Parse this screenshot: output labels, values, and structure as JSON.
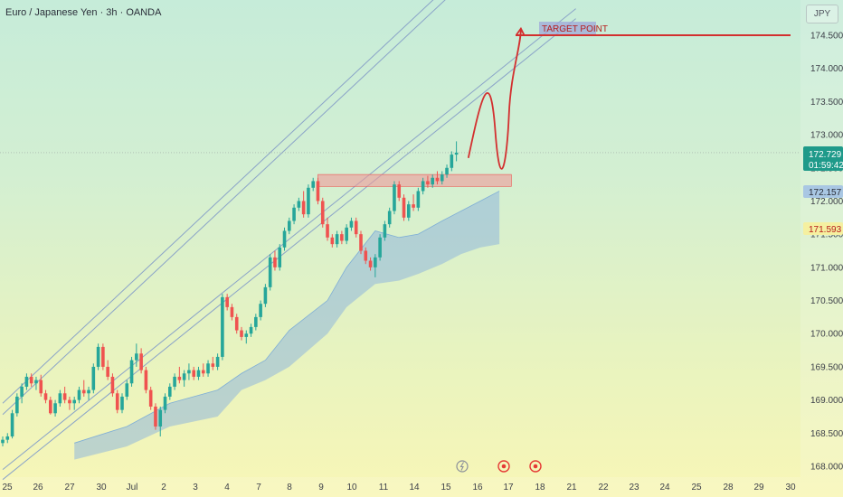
{
  "title": "Euro / Japanese Yen · 3h · OANDA",
  "currency": "JPY",
  "price_labels": {
    "current_price": "172.729",
    "countdown": "01:59:42",
    "cloud_a": "172.157",
    "cloud_b": "171.593"
  },
  "colors": {
    "up": "#26a69a",
    "down": "#ef5350",
    "channel": "#8aa3c8",
    "cloud": "#90b7dc",
    "target_line": "#d32f2f",
    "target_label_bg": "#9fa8da",
    "target_label_text": "#b71c1c",
    "resistance_zone": "#ef9a9a"
  },
  "annotations": {
    "target_label": "TARGET POINT"
  },
  "chart_data": {
    "type": "candlestick",
    "symbol": "Euro / Japanese Yen",
    "interval": "3h",
    "exchange": "OANDA",
    "ylim": [
      167.95,
      175.0
    ],
    "ytick_values": [
      168.0,
      168.5,
      169.0,
      169.5,
      170.0,
      170.5,
      171.0,
      171.5,
      172.0,
      172.5,
      173.0,
      173.5,
      174.0,
      174.5
    ],
    "ytick_labels": [
      "168.000",
      "168.500",
      "169.000",
      "169.500",
      "170.000",
      "170.500",
      "171.000",
      "171.500",
      "172.000",
      "172.500",
      "173.000",
      "173.500",
      "174.000",
      "174.500"
    ],
    "xticks": [
      "25",
      "26",
      "27",
      "30",
      "Jul",
      "2",
      "3",
      "4",
      "7",
      "8",
      "9",
      "10",
      "11",
      "14",
      "15",
      "16",
      "17",
      "18",
      "21",
      "22",
      "23",
      "24",
      "25",
      "28",
      "29",
      "30"
    ],
    "last_price": 172.729,
    "target_price": 174.5,
    "resistance_zone": [
      172.22,
      172.4
    ],
    "candles": [
      [
        168.35,
        168.45,
        168.3,
        168.4
      ],
      [
        168.4,
        168.5,
        168.35,
        168.45
      ],
      [
        168.45,
        168.85,
        168.42,
        168.8
      ],
      [
        168.8,
        169.1,
        168.75,
        169.05
      ],
      [
        169.05,
        169.25,
        168.95,
        169.2
      ],
      [
        169.2,
        169.4,
        169.15,
        169.35
      ],
      [
        169.35,
        169.4,
        169.2,
        169.25
      ],
      [
        169.25,
        169.35,
        169.15,
        169.3
      ],
      [
        169.3,
        169.38,
        169.05,
        169.1
      ],
      [
        169.1,
        169.15,
        168.95,
        169.0
      ],
      [
        169.0,
        169.05,
        168.78,
        168.8
      ],
      [
        168.8,
        169.0,
        168.75,
        168.95
      ],
      [
        168.95,
        169.15,
        168.9,
        169.1
      ],
      [
        169.1,
        169.2,
        168.95,
        169.0
      ],
      [
        169.0,
        169.05,
        168.85,
        168.95
      ],
      [
        168.95,
        169.05,
        168.85,
        169.0
      ],
      [
        169.0,
        169.2,
        168.95,
        169.15
      ],
      [
        169.15,
        169.3,
        169.05,
        169.1
      ],
      [
        169.1,
        169.2,
        169.0,
        169.15
      ],
      [
        169.15,
        169.55,
        169.1,
        169.5
      ],
      [
        169.5,
        169.85,
        169.45,
        169.8
      ],
      [
        169.8,
        169.85,
        169.45,
        169.5
      ],
      [
        169.5,
        169.6,
        169.3,
        169.35
      ],
      [
        169.35,
        169.4,
        169.05,
        169.1
      ],
      [
        169.1,
        169.15,
        168.8,
        168.85
      ],
      [
        168.85,
        169.1,
        168.8,
        169.05
      ],
      [
        169.05,
        169.3,
        169.0,
        169.25
      ],
      [
        169.25,
        169.65,
        169.2,
        169.6
      ],
      [
        169.6,
        169.85,
        169.5,
        169.7
      ],
      [
        169.7,
        169.78,
        169.4,
        169.45
      ],
      [
        169.45,
        169.5,
        169.1,
        169.15
      ],
      [
        169.15,
        169.2,
        168.85,
        168.9
      ],
      [
        168.9,
        168.95,
        168.55,
        168.6
      ],
      [
        168.6,
        168.9,
        168.45,
        168.85
      ],
      [
        168.85,
        169.1,
        168.8,
        169.05
      ],
      [
        169.05,
        169.25,
        169.0,
        169.2
      ],
      [
        169.2,
        169.4,
        169.15,
        169.35
      ],
      [
        169.35,
        169.5,
        169.25,
        169.3
      ],
      [
        169.3,
        169.45,
        169.2,
        169.4
      ],
      [
        169.4,
        169.55,
        169.3,
        169.45
      ],
      [
        169.45,
        169.5,
        169.3,
        169.35
      ],
      [
        169.35,
        169.5,
        169.3,
        169.45
      ],
      [
        169.45,
        169.55,
        169.35,
        169.4
      ],
      [
        169.4,
        169.6,
        169.35,
        169.55
      ],
      [
        169.55,
        169.65,
        169.45,
        169.5
      ],
      [
        169.5,
        169.7,
        169.45,
        169.65
      ],
      [
        169.65,
        170.6,
        169.6,
        170.55
      ],
      [
        170.55,
        170.6,
        170.35,
        170.4
      ],
      [
        170.4,
        170.45,
        170.2,
        170.25
      ],
      [
        170.25,
        170.3,
        170.0,
        170.05
      ],
      [
        170.05,
        170.1,
        169.9,
        169.95
      ],
      [
        169.95,
        170.05,
        169.85,
        170.0
      ],
      [
        170.0,
        170.15,
        169.95,
        170.1
      ],
      [
        170.1,
        170.3,
        170.05,
        170.25
      ],
      [
        170.25,
        170.5,
        170.2,
        170.45
      ],
      [
        170.45,
        170.75,
        170.4,
        170.7
      ],
      [
        170.7,
        171.2,
        170.65,
        171.15
      ],
      [
        171.15,
        171.25,
        170.95,
        171.0
      ],
      [
        171.0,
        171.35,
        170.95,
        171.3
      ],
      [
        171.3,
        171.6,
        171.25,
        171.55
      ],
      [
        171.55,
        171.75,
        171.5,
        171.7
      ],
      [
        171.7,
        171.95,
        171.65,
        171.9
      ],
      [
        171.9,
        172.05,
        171.85,
        172.0
      ],
      [
        172.0,
        172.15,
        171.75,
        171.8
      ],
      [
        171.8,
        172.25,
        171.75,
        172.2
      ],
      [
        172.2,
        172.35,
        172.15,
        172.3
      ],
      [
        172.3,
        172.35,
        171.95,
        172.0
      ],
      [
        172.0,
        172.05,
        171.6,
        171.65
      ],
      [
        171.65,
        171.75,
        171.4,
        171.45
      ],
      [
        171.45,
        171.5,
        171.3,
        171.35
      ],
      [
        171.35,
        171.55,
        171.3,
        171.5
      ],
      [
        171.5,
        171.55,
        171.35,
        171.4
      ],
      [
        171.4,
        171.65,
        171.35,
        171.6
      ],
      [
        171.6,
        171.75,
        171.55,
        171.7
      ],
      [
        171.7,
        171.75,
        171.45,
        171.5
      ],
      [
        171.5,
        171.55,
        171.2,
        171.25
      ],
      [
        171.25,
        171.3,
        171.05,
        171.1
      ],
      [
        171.1,
        171.15,
        170.95,
        171.0
      ],
      [
        171.0,
        171.2,
        170.85,
        171.15
      ],
      [
        171.15,
        171.5,
        171.1,
        171.45
      ],
      [
        171.45,
        171.7,
        171.4,
        171.65
      ],
      [
        171.65,
        171.9,
        171.6,
        171.85
      ],
      [
        171.85,
        172.3,
        171.8,
        172.25
      ],
      [
        172.25,
        172.3,
        172.0,
        172.05
      ],
      [
        172.05,
        172.1,
        171.7,
        171.75
      ],
      [
        171.75,
        172.0,
        171.7,
        171.95
      ],
      [
        171.95,
        172.1,
        171.85,
        171.9
      ],
      [
        171.9,
        172.2,
        171.85,
        172.15
      ],
      [
        172.15,
        172.35,
        172.1,
        172.3
      ],
      [
        172.3,
        172.38,
        172.2,
        172.25
      ],
      [
        172.25,
        172.4,
        172.2,
        172.35
      ],
      [
        172.35,
        172.45,
        172.25,
        172.3
      ],
      [
        172.3,
        172.45,
        172.25,
        172.4
      ],
      [
        172.4,
        172.55,
        172.35,
        172.5
      ],
      [
        172.5,
        172.75,
        172.45,
        172.7
      ],
      [
        172.7,
        172.9,
        172.6,
        172.73
      ]
    ],
    "channel_upper": [
      [
        0,
        168.95
      ],
      [
        100,
        175.7
      ]
    ],
    "channel_upper_inner": [
      [
        0,
        168.78
      ],
      [
        100,
        175.53
      ]
    ],
    "channel_lower": [
      [
        0,
        167.95
      ],
      [
        120,
        174.9
      ]
    ],
    "channel_lower_inner": [
      [
        0,
        167.8
      ],
      [
        120,
        174.75
      ]
    ],
    "cloud_top": [
      [
        15,
        168.35
      ],
      [
        26,
        168.6
      ],
      [
        35,
        168.95
      ],
      [
        45,
        169.15
      ],
      [
        50,
        169.4
      ],
      [
        55,
        169.6
      ],
      [
        60,
        170.05
      ],
      [
        68,
        170.5
      ],
      [
        72,
        171.0
      ],
      [
        78,
        171.55
      ],
      [
        83,
        171.45
      ],
      [
        87,
        171.5
      ],
      [
        92,
        171.7
      ],
      [
        96,
        171.85
      ],
      [
        100,
        172.0
      ],
      [
        104,
        172.15
      ]
    ],
    "cloud_bottom": [
      [
        15,
        168.1
      ],
      [
        26,
        168.3
      ],
      [
        35,
        168.6
      ],
      [
        45,
        168.75
      ],
      [
        50,
        169.15
      ],
      [
        55,
        169.3
      ],
      [
        60,
        169.5
      ],
      [
        68,
        170.0
      ],
      [
        72,
        170.4
      ],
      [
        78,
        170.75
      ],
      [
        83,
        170.8
      ],
      [
        87,
        170.9
      ],
      [
        92,
        171.05
      ],
      [
        96,
        171.2
      ],
      [
        100,
        171.3
      ],
      [
        104,
        171.35
      ]
    ],
    "projection_path": [
      [
        97.5,
        172.65
      ],
      [
        100,
        173.5
      ],
      [
        102,
        173.6
      ],
      [
        104.5,
        172.8
      ],
      [
        106,
        173.3
      ],
      [
        108.5,
        174.6
      ]
    ]
  }
}
